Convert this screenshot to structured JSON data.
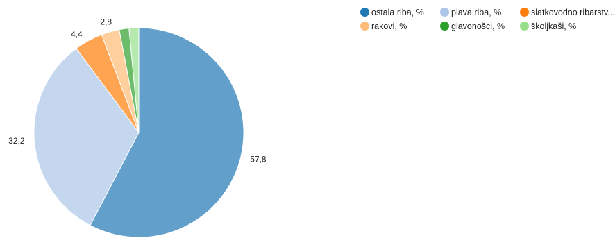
{
  "chart_data": {
    "type": "pie",
    "title": "",
    "series": [
      {
        "name": "ostala riba, %",
        "value": 57.8,
        "value_label": "57,8",
        "legend_color": "#1f77b4",
        "slice_color": "#629fca"
      },
      {
        "name": "plava riba, %",
        "value": 32.2,
        "value_label": "32,2",
        "legend_color": "#aec7e8",
        "slice_color": "#c5d7ee"
      },
      {
        "name": "rakovi, %",
        "value": 4.4,
        "value_label": "4,4",
        "legend_color": "#ff7f0e",
        "slice_color": "#ffa451"
      },
      {
        "name": "",
        "value": 2.8,
        "value_label": "2,8",
        "legend_color": "#ffbb78",
        "slice_color": "#ffcf9d"
      },
      {
        "name": "glavonošci, %",
        "value": 1.5,
        "value_label": "",
        "legend_color": "#2ca02c",
        "slice_color": "#6cbc6c"
      },
      {
        "name": "školjkaši, %",
        "value": 1.5,
        "value_label": "",
        "legend_color": "#98df8a",
        "slice_color": "#b6e9ad"
      }
    ],
    "legend": {
      "placement": "top-right",
      "items": [
        {
          "label": "ostala riba, %",
          "color": "#1f77b4"
        },
        {
          "label": "plava riba, %",
          "color": "#aec7e8"
        },
        {
          "label": "slatkovodno ribarstv...",
          "color": "#ff7f0e"
        },
        {
          "label": "rakovi, %",
          "color": "#ffbb78"
        },
        {
          "label": "glavonošci, %",
          "color": "#2ca02c"
        },
        {
          "label": "školjkaši, %",
          "color": "#98df8a"
        }
      ]
    }
  }
}
